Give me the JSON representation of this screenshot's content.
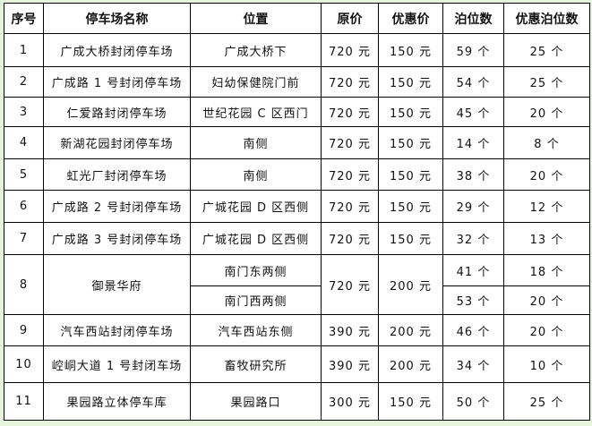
{
  "headers": [
    "序号",
    "停车场名称",
    "位置",
    "原价",
    "优惠价",
    "泊位数",
    "优惠泊位数"
  ],
  "rows": [
    {
      "no": "1",
      "name": "广成大桥封闭停车场",
      "location": "广成大桥下",
      "price": "720 元",
      "discount": "150 元",
      "spaces": "59 个",
      "discount_spaces": "25 个"
    },
    {
      "no": "2",
      "name": "广成路 1 号封闭停车场",
      "location": "妇幼保健院门前",
      "price": "720 元",
      "discount": "150 元",
      "spaces": "54 个",
      "discount_spaces": "25 个"
    },
    {
      "no": "3",
      "name": "仁爱路封闭停车场",
      "location": "世纪花园 C 区西门",
      "price": "720 元",
      "discount": "150 元",
      "spaces": "45 个",
      "discount_spaces": "20 个"
    },
    {
      "no": "4",
      "name": "新湖花园封闭停车场",
      "location": "南侧",
      "price": "720 元",
      "discount": "150 元",
      "spaces": "14 个",
      "discount_spaces": "8 个"
    },
    {
      "no": "5",
      "name": "虹光厂封闭停车场",
      "location": "南侧",
      "price": "720 元",
      "discount": "150 元",
      "spaces": "38 个",
      "discount_spaces": "20 个"
    },
    {
      "no": "6",
      "name": "广成路 2 号封闭停车场",
      "location": "广城花园 D 区西侧",
      "price": "720 元",
      "discount": "150 元",
      "spaces": "29 个",
      "discount_spaces": "12 个"
    },
    {
      "no": "7",
      "name": "广成路 3 号封闭停车场",
      "location": "广城花园 D 区西侧",
      "price": "720 元",
      "discount": "150 元",
      "spaces": "32 个",
      "discount_spaces": "13 个"
    },
    {
      "no": "8",
      "name": "御景华府",
      "location": "南门东两侧",
      "location2": "南门西两侧",
      "price": "720 元",
      "discount": "200 元",
      "spaces": "41 个",
      "spaces2": "53 个",
      "discount_spaces": "18 个",
      "discount_spaces2": "20 个"
    },
    {
      "no": "9",
      "name": "汽车西站封闭停车场",
      "location": "汽车西站东侧",
      "price": "390 元",
      "discount": "200 元",
      "spaces": "46 个",
      "discount_spaces": "20 个"
    },
    {
      "no": "10",
      "name": "崆峒大道 1 号封闭车场",
      "location": "畜牧研究所",
      "price": "390 元",
      "discount": "200 元",
      "spaces": "34 个",
      "discount_spaces": "10 个"
    },
    {
      "no": "11",
      "name": "果园路立体停车库",
      "location": "果园路口",
      "price": "300 元",
      "discount": "150 元",
      "spaces": "50 个",
      "discount_spaces": "25 个"
    }
  ],
  "colors": {
    "background": "#e6f4dc",
    "table": "#ffffff",
    "border": "#000000"
  }
}
